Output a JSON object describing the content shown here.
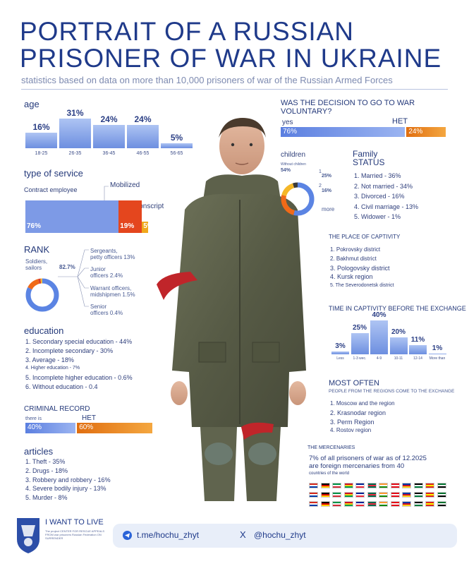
{
  "header": {
    "title_line1": "PORTRAIT OF A RUSSIAN",
    "title_line2": "PRISONER OF WAR IN UKRAINE",
    "subtitle": "statistics based on data on more than 10,000 prisoners of war of the Russian Armed Forces"
  },
  "chart_data": [
    {
      "type": "bar",
      "id": "age",
      "title": "age",
      "categories": [
        "18-25",
        "26-35",
        "36-45",
        "46-55",
        "56-65"
      ],
      "values": [
        16,
        31,
        24,
        24,
        5
      ],
      "value_labels": [
        "16%",
        "31%",
        "24%",
        "24%",
        "5%"
      ]
    },
    {
      "type": "bar",
      "id": "service",
      "title": "type of service",
      "categories": [
        "Contract employee",
        "Mobilized",
        "Conscript"
      ],
      "values": [
        76,
        19,
        5
      ],
      "value_labels": [
        "76%",
        "19%",
        "5%"
      ],
      "colors": [
        "#7d9ae6",
        "#e4461e",
        "#f0a81c"
      ]
    },
    {
      "type": "pie",
      "id": "rank",
      "title": "RANK",
      "labels": [
        "Soldiers, sailors",
        "Sergeants, petty officers",
        "Junior officers",
        "Warrant officers, midshipmen",
        "Senior officers"
      ],
      "values": [
        82.7,
        13,
        2.4,
        1.5,
        0.4
      ],
      "value_labels": [
        "82.7%",
        "13%",
        "2.4%",
        "1.5%",
        "0.4%"
      ],
      "colors": [
        "#5b84e3",
        "#f06a18",
        "#d8402a",
        "#f5b727",
        "#9a9a9a"
      ]
    },
    {
      "type": "bar",
      "id": "voluntary",
      "title": "WAS THE DECISION TO GO TO WAR VOLUNTARY?",
      "categories": [
        "yes",
        "НЕТ"
      ],
      "values": [
        76,
        24
      ],
      "value_labels": [
        "76%",
        "24%"
      ]
    },
    {
      "type": "pie",
      "id": "children",
      "title": "children",
      "labels": [
        "Without children",
        "1",
        "2",
        "3 or more"
      ],
      "values": [
        54,
        25,
        16,
        5
      ],
      "value_labels": [
        "54%",
        "25%",
        "16%",
        ""
      ],
      "colors": [
        "#5b84e3",
        "#f06a18",
        "#f5b727",
        "#3a3a3a"
      ]
    },
    {
      "type": "bar",
      "id": "captivity_time",
      "title": "TIME IN CAPTIVITY BEFORE THE EXCHANGE",
      "categories": [
        "Less than a week",
        "1-3 weeks",
        "4-9 months",
        "10-11 months",
        "12-14 months",
        "More than 14 months"
      ],
      "tick_labels": [
        "Less",
        "1-3 wec.",
        "4-9",
        "10-11",
        "12-14",
        "More than"
      ],
      "values": [
        3,
        25,
        40,
        20,
        11,
        1
      ],
      "value_labels": [
        "3%",
        "25%",
        "40%",
        "20%",
        "11%",
        "1%"
      ]
    },
    {
      "type": "bar",
      "id": "criminal",
      "title": "CRIMINAL RECORD",
      "categories": [
        "there is",
        "НЕТ"
      ],
      "values": [
        40,
        60
      ],
      "value_labels": [
        "40%",
        "60%"
      ]
    }
  ],
  "service_labels": {
    "contract": "Contract employee",
    "mobilized": "Mobilized",
    "conscript": "Conscript"
  },
  "rank_labels": {
    "soldiers": "Soldiers, sailors",
    "soldiers_pct": "82.7%",
    "sergeants": "Sergeants,",
    "sergeants2": "petty officers 13%",
    "junior": "Junior",
    "junior2": "officers 2.4%",
    "warrant": "Warrant officers,",
    "warrant2": "midshipmen 1.5%",
    "senior": "Senior",
    "senior2": "officers 0.4%"
  },
  "education": {
    "title": "education",
    "items": [
      "1. Secondary special education - 44%",
      "2. Incomplete secondary - 30%",
      "3. Average - 18%",
      "4. Higher education - 7%",
      "5. Incomplete higher education - 0.6%",
      "6. Without education - 0.4"
    ]
  },
  "criminal_labels": {
    "yes": "there is",
    "no": "НЕТ"
  },
  "articles": {
    "title": "articles",
    "items": [
      "1. Theft - 35%",
      "2. Drugs - 18%",
      "3. Robbery and robbery - 16%",
      "4. Severe bodily injury - 13%",
      "5. Murder - 8%"
    ]
  },
  "voluntary_labels": {
    "yes": "yes",
    "no": "НЕТ"
  },
  "children_labels": {
    "without": "Without children",
    "one": "1",
    "two": "2",
    "more": "more"
  },
  "family": {
    "title1": "Family",
    "title2": "STATUS",
    "items": [
      "1. Married - 36%",
      "2. Not married - 34%",
      "3. Divorced - 16%",
      "4. Civil marriage - 13%",
      "5. Widower - 1%"
    ]
  },
  "captivity_place": {
    "title": "THE PLACE OF CAPTIVITY",
    "items": [
      "1. Pokrovsky district",
      "2. Bakhmut district",
      "3. Pologovsky district",
      "4. Kursk region",
      "5. The Severodonetsk district"
    ]
  },
  "most_often": {
    "title": "MOST OFTEN",
    "subtitle": "PEOPLE FROM THE REGIONS COME TO THE EXCHANGE",
    "items": [
      "1. Moscow and the region",
      "2. Krasnodar region",
      "3. Perm Region",
      "4. Rostov region"
    ]
  },
  "mercenaries": {
    "title": "THE MERCENARIES",
    "line1": "7% of all prisoners of war as of 12.2025",
    "line2": "are foreign mercenaries from 40",
    "line3": "countries of the world"
  },
  "footer": {
    "brand": "I WANT TO LIVE",
    "org_line": "The project CENTER FOR RESCUE APPEALS FROM war prisoners Russian Federation ON SURRENDER",
    "telegram": "t.me/hochu_zhyt",
    "x_handle": "@hochu_zhyt",
    "x_mark": "X"
  },
  "colors": {
    "accent": "#1f3a8a",
    "blue": "#7d9ae6",
    "orange": "#f08a1e",
    "red": "#e4461e"
  }
}
